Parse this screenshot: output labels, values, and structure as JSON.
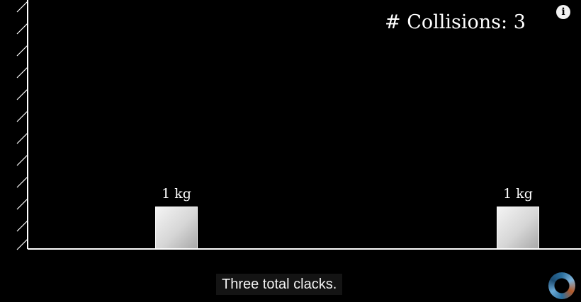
{
  "counter": {
    "label": "# Collisions: 3"
  },
  "blocks": [
    {
      "mass_label": "1 kg"
    },
    {
      "mass_label": "1 kg"
    }
  ],
  "caption": {
    "text": "Three total clacks."
  },
  "icons": {
    "info": "info-icon",
    "spinner": "loading-spinner-icon"
  },
  "colors": {
    "background": "#000000",
    "lines": "#ffffff",
    "block_light": "#f4f4f4",
    "block_dark": "#a9a9a9"
  }
}
